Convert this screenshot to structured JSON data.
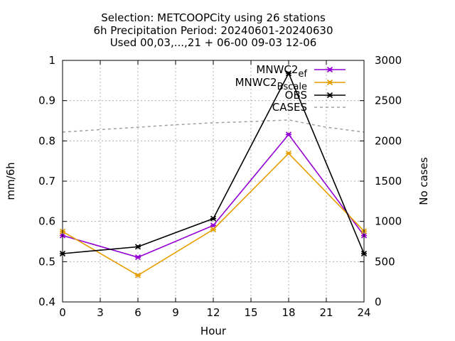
{
  "chart_data": {
    "type": "line",
    "title_lines": [
      "Selection: METCOOPCity using     26 stations",
      "6h Precipitation   Period: 20240601-20240630",
      "Used 00,03,...,21 + 06-00 09-03 12-06"
    ],
    "xlabel": "Hour",
    "ylabel": "mm/6h",
    "y2label": "No cases",
    "xlim": [
      0,
      24
    ],
    "ylim": [
      0.4,
      1.0
    ],
    "y2lim": [
      0,
      3000
    ],
    "xticks": [
      "0",
      "3",
      "6",
      "9",
      "12",
      "15",
      "18",
      "21",
      "24"
    ],
    "yticks": [
      "0.4",
      "0.5",
      "0.6",
      "0.7",
      "0.8",
      "0.9",
      "1"
    ],
    "y2ticks": [
      "0",
      "500",
      "1000",
      "1500",
      "2000",
      "2500",
      "3000"
    ],
    "grid": true,
    "legend_position": "top-right",
    "series": [
      {
        "name": "MNWC2_ef",
        "color": "#9400d3",
        "x": [
          0,
          6,
          12,
          18,
          24
        ],
        "values": [
          0.565,
          0.511,
          0.59,
          0.816,
          0.565
        ]
      },
      {
        "name": "MNWC2_Bscale",
        "color": "#e69f00",
        "x": [
          0,
          6,
          12,
          18,
          24
        ],
        "values": [
          0.575,
          0.466,
          0.58,
          0.769,
          0.576
        ]
      },
      {
        "name": "OBS",
        "color": "#000000",
        "x": [
          0,
          6,
          12,
          18,
          24
        ],
        "values": [
          0.52,
          0.537,
          0.607,
          0.968,
          0.52
        ]
      }
    ],
    "cases": {
      "name": "CASES",
      "color": "#a0a0a0",
      "axis": "y2",
      "x": [
        0,
        3,
        6,
        9,
        12,
        15,
        18,
        21,
        24
      ],
      "values": [
        2110,
        2140,
        2170,
        2200,
        2225,
        2240,
        2260,
        2170,
        2110
      ]
    }
  }
}
